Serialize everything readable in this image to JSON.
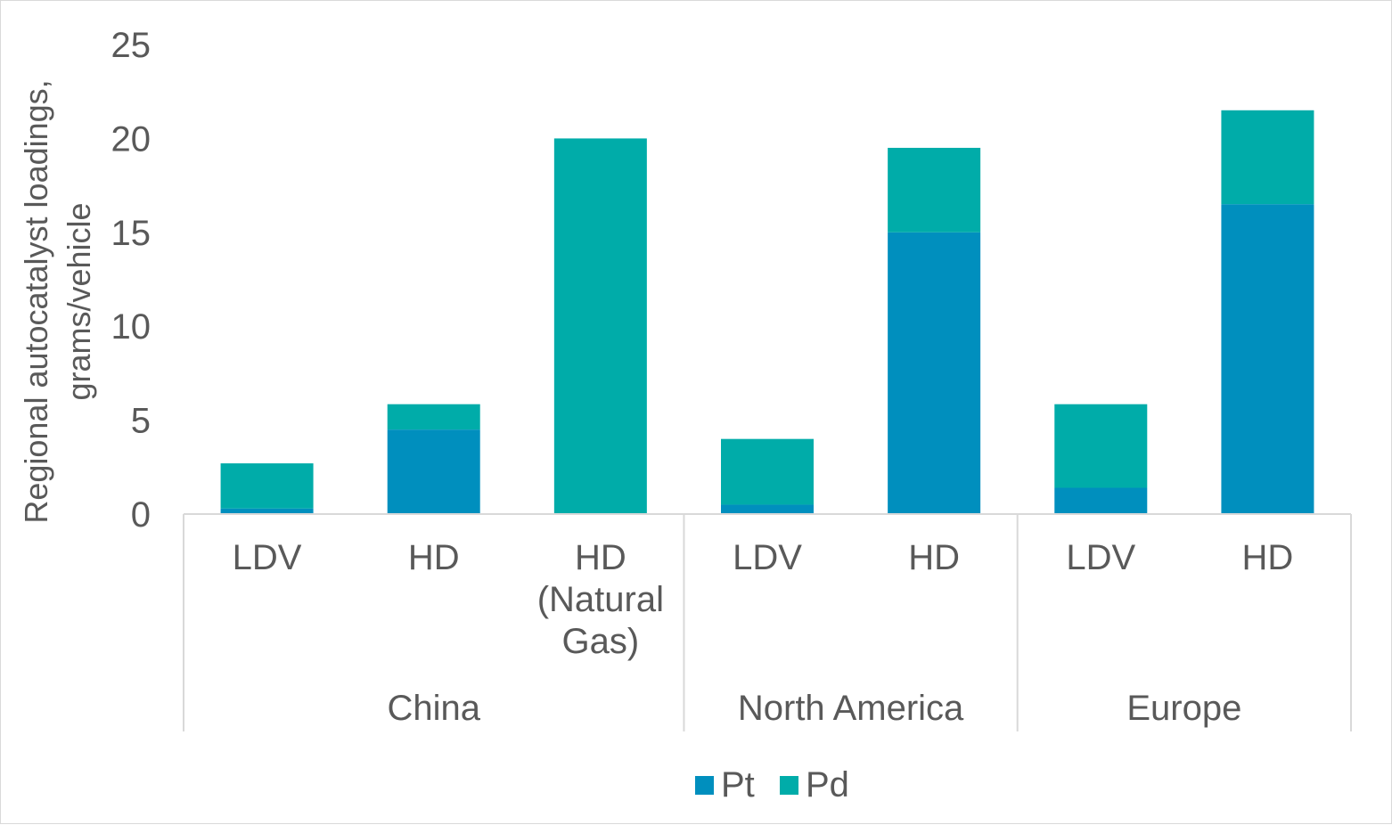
{
  "chart_data": {
    "type": "bar",
    "stacked": true,
    "title": "",
    "ylabel_lines": [
      "Regional autocatalyst loadings,",
      "grams/vehicle"
    ],
    "xlabel": "",
    "ylim": [
      0,
      25
    ],
    "yticks": [
      "0",
      "5",
      "10",
      "15",
      "20",
      "25"
    ],
    "grid": false,
    "legend_position": "bottom",
    "groups": [
      {
        "label": "China",
        "categories": [
          {
            "label_lines": [
              "LDV"
            ]
          },
          {
            "label_lines": [
              "HD"
            ]
          },
          {
            "label_lines": [
              "HD",
              "(Natural",
              "Gas)"
            ]
          }
        ]
      },
      {
        "label": "North America",
        "categories": [
          {
            "label_lines": [
              "LDV"
            ]
          },
          {
            "label_lines": [
              "HD"
            ]
          }
        ]
      },
      {
        "label": "Europe",
        "categories": [
          {
            "label_lines": [
              "LDV"
            ]
          },
          {
            "label_lines": [
              "HD"
            ]
          }
        ]
      }
    ],
    "series": [
      {
        "name": "Pt",
        "color": "#008fbe",
        "values": [
          0.3,
          4.5,
          0,
          0.5,
          15.0,
          1.4,
          16.5
        ]
      },
      {
        "name": "Pd",
        "color": "#00aca9",
        "values": [
          2.4,
          1.35,
          20.0,
          3.5,
          4.5,
          4.45,
          5.0
        ]
      }
    ]
  }
}
